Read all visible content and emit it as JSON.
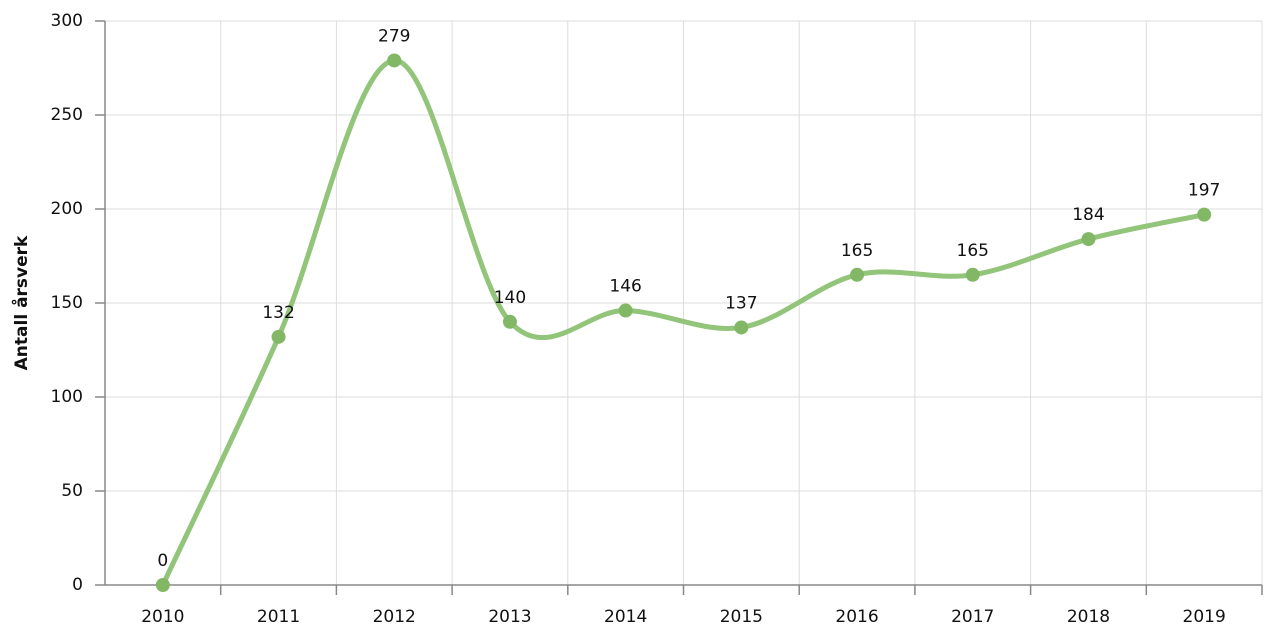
{
  "chart_data": {
    "type": "line",
    "y_label": "Antall årsverk",
    "categories": [
      "2010",
      "2011",
      "2012",
      "2013",
      "2014",
      "2015",
      "2016",
      "2017",
      "2018",
      "2019"
    ],
    "values": [
      0,
      132,
      279,
      140,
      146,
      137,
      165,
      165,
      184,
      197
    ],
    "color": "#92c47a",
    "marker_color": "#82b865",
    "ylim": [
      0,
      300
    ],
    "yticks": [
      0,
      50,
      100,
      150,
      200,
      250,
      300
    ],
    "grid": true
  }
}
